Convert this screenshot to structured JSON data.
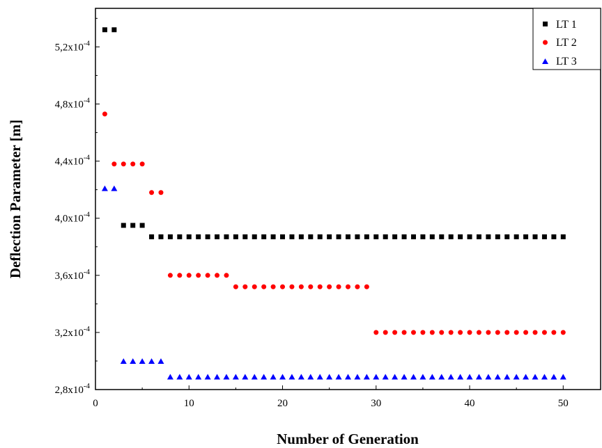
{
  "chart_data": {
    "type": "scatter",
    "xlabel": "Number of Generation",
    "ylabel": "Deflection Parameter [m]",
    "xlim": [
      0,
      54
    ],
    "ylim": [
      0.00028,
      0.000547
    ],
    "x_ticks": [
      0,
      10,
      20,
      30,
      40,
      50
    ],
    "x_tick_labels": [
      "0",
      "10",
      "20",
      "30",
      "40",
      "50"
    ],
    "y_ticks": [
      0.00028,
      0.00032,
      0.00036,
      0.0004,
      0.00044,
      0.00048,
      0.00052
    ],
    "y_tick_labels": [
      "2,8x10-4",
      "3,2x10-4",
      "3,6x10-4",
      "4,0x10-4",
      "4,4x10-4",
      "4,8x10-4",
      "5,2x10-4"
    ],
    "grid": false,
    "legend_position": "top-right",
    "series": [
      {
        "name": "LT 1",
        "marker": "square",
        "color": "#000000",
        "x": [
          1,
          2,
          3,
          4,
          5,
          6,
          7,
          8,
          9,
          10,
          11,
          12,
          13,
          14,
          15,
          16,
          17,
          18,
          19,
          20,
          21,
          22,
          23,
          24,
          25,
          26,
          27,
          28,
          29,
          30,
          31,
          32,
          33,
          34,
          35,
          36,
          37,
          38,
          39,
          40,
          41,
          42,
          43,
          44,
          45,
          46,
          47,
          48,
          49,
          50
        ],
        "y": [
          0.000532,
          0.000532,
          0.000395,
          0.000395,
          0.000395,
          0.000387,
          0.000387,
          0.000387,
          0.000387,
          0.000387,
          0.000387,
          0.000387,
          0.000387,
          0.000387,
          0.000387,
          0.000387,
          0.000387,
          0.000387,
          0.000387,
          0.000387,
          0.000387,
          0.000387,
          0.000387,
          0.000387,
          0.000387,
          0.000387,
          0.000387,
          0.000387,
          0.000387,
          0.000387,
          0.000387,
          0.000387,
          0.000387,
          0.000387,
          0.000387,
          0.000387,
          0.000387,
          0.000387,
          0.000387,
          0.000387,
          0.000387,
          0.000387,
          0.000387,
          0.000387,
          0.000387,
          0.000387,
          0.000387,
          0.000387,
          0.000387,
          0.000387
        ]
      },
      {
        "name": "LT 2",
        "marker": "circle",
        "color": "#ff0000",
        "x": [
          1,
          2,
          3,
          4,
          5,
          6,
          7,
          8,
          9,
          10,
          11,
          12,
          13,
          14,
          15,
          16,
          17,
          18,
          19,
          20,
          21,
          22,
          23,
          24,
          25,
          26,
          27,
          28,
          29,
          30,
          31,
          32,
          33,
          34,
          35,
          36,
          37,
          38,
          39,
          40,
          41,
          42,
          43,
          44,
          45,
          46,
          47,
          48,
          49,
          50
        ],
        "y": [
          0.000473,
          0.000438,
          0.000438,
          0.000438,
          0.000438,
          0.000418,
          0.000418,
          0.00036,
          0.00036,
          0.00036,
          0.00036,
          0.00036,
          0.00036,
          0.00036,
          0.000352,
          0.000352,
          0.000352,
          0.000352,
          0.000352,
          0.000352,
          0.000352,
          0.000352,
          0.000352,
          0.000352,
          0.000352,
          0.000352,
          0.000352,
          0.000352,
          0.000352,
          0.00032,
          0.00032,
          0.00032,
          0.00032,
          0.00032,
          0.00032,
          0.00032,
          0.00032,
          0.00032,
          0.00032,
          0.00032,
          0.00032,
          0.00032,
          0.00032,
          0.00032,
          0.00032,
          0.00032,
          0.00032,
          0.00032,
          0.00032,
          0.00032
        ]
      },
      {
        "name": "LT 3",
        "marker": "triangle",
        "color": "#0000ff",
        "x": [
          1,
          2,
          3,
          4,
          5,
          6,
          7,
          8,
          9,
          10,
          11,
          12,
          13,
          14,
          15,
          16,
          17,
          18,
          19,
          20,
          21,
          22,
          23,
          24,
          25,
          26,
          27,
          28,
          29,
          30,
          31,
          32,
          33,
          34,
          35,
          36,
          37,
          38,
          39,
          40,
          41,
          42,
          43,
          44,
          45,
          46,
          47,
          48,
          49,
          50
        ],
        "y": [
          0.000421,
          0.000421,
          0.0003,
          0.0003,
          0.0003,
          0.0003,
          0.0003,
          0.000289,
          0.000289,
          0.000289,
          0.000289,
          0.000289,
          0.000289,
          0.000289,
          0.000289,
          0.000289,
          0.000289,
          0.000289,
          0.000289,
          0.000289,
          0.000289,
          0.000289,
          0.000289,
          0.000289,
          0.000289,
          0.000289,
          0.000289,
          0.000289,
          0.000289,
          0.000289,
          0.000289,
          0.000289,
          0.000289,
          0.000289,
          0.000289,
          0.000289,
          0.000289,
          0.000289,
          0.000289,
          0.000289,
          0.000289,
          0.000289,
          0.000289,
          0.000289,
          0.000289,
          0.000289,
          0.000289,
          0.000289,
          0.000289,
          0.000289
        ]
      }
    ]
  }
}
